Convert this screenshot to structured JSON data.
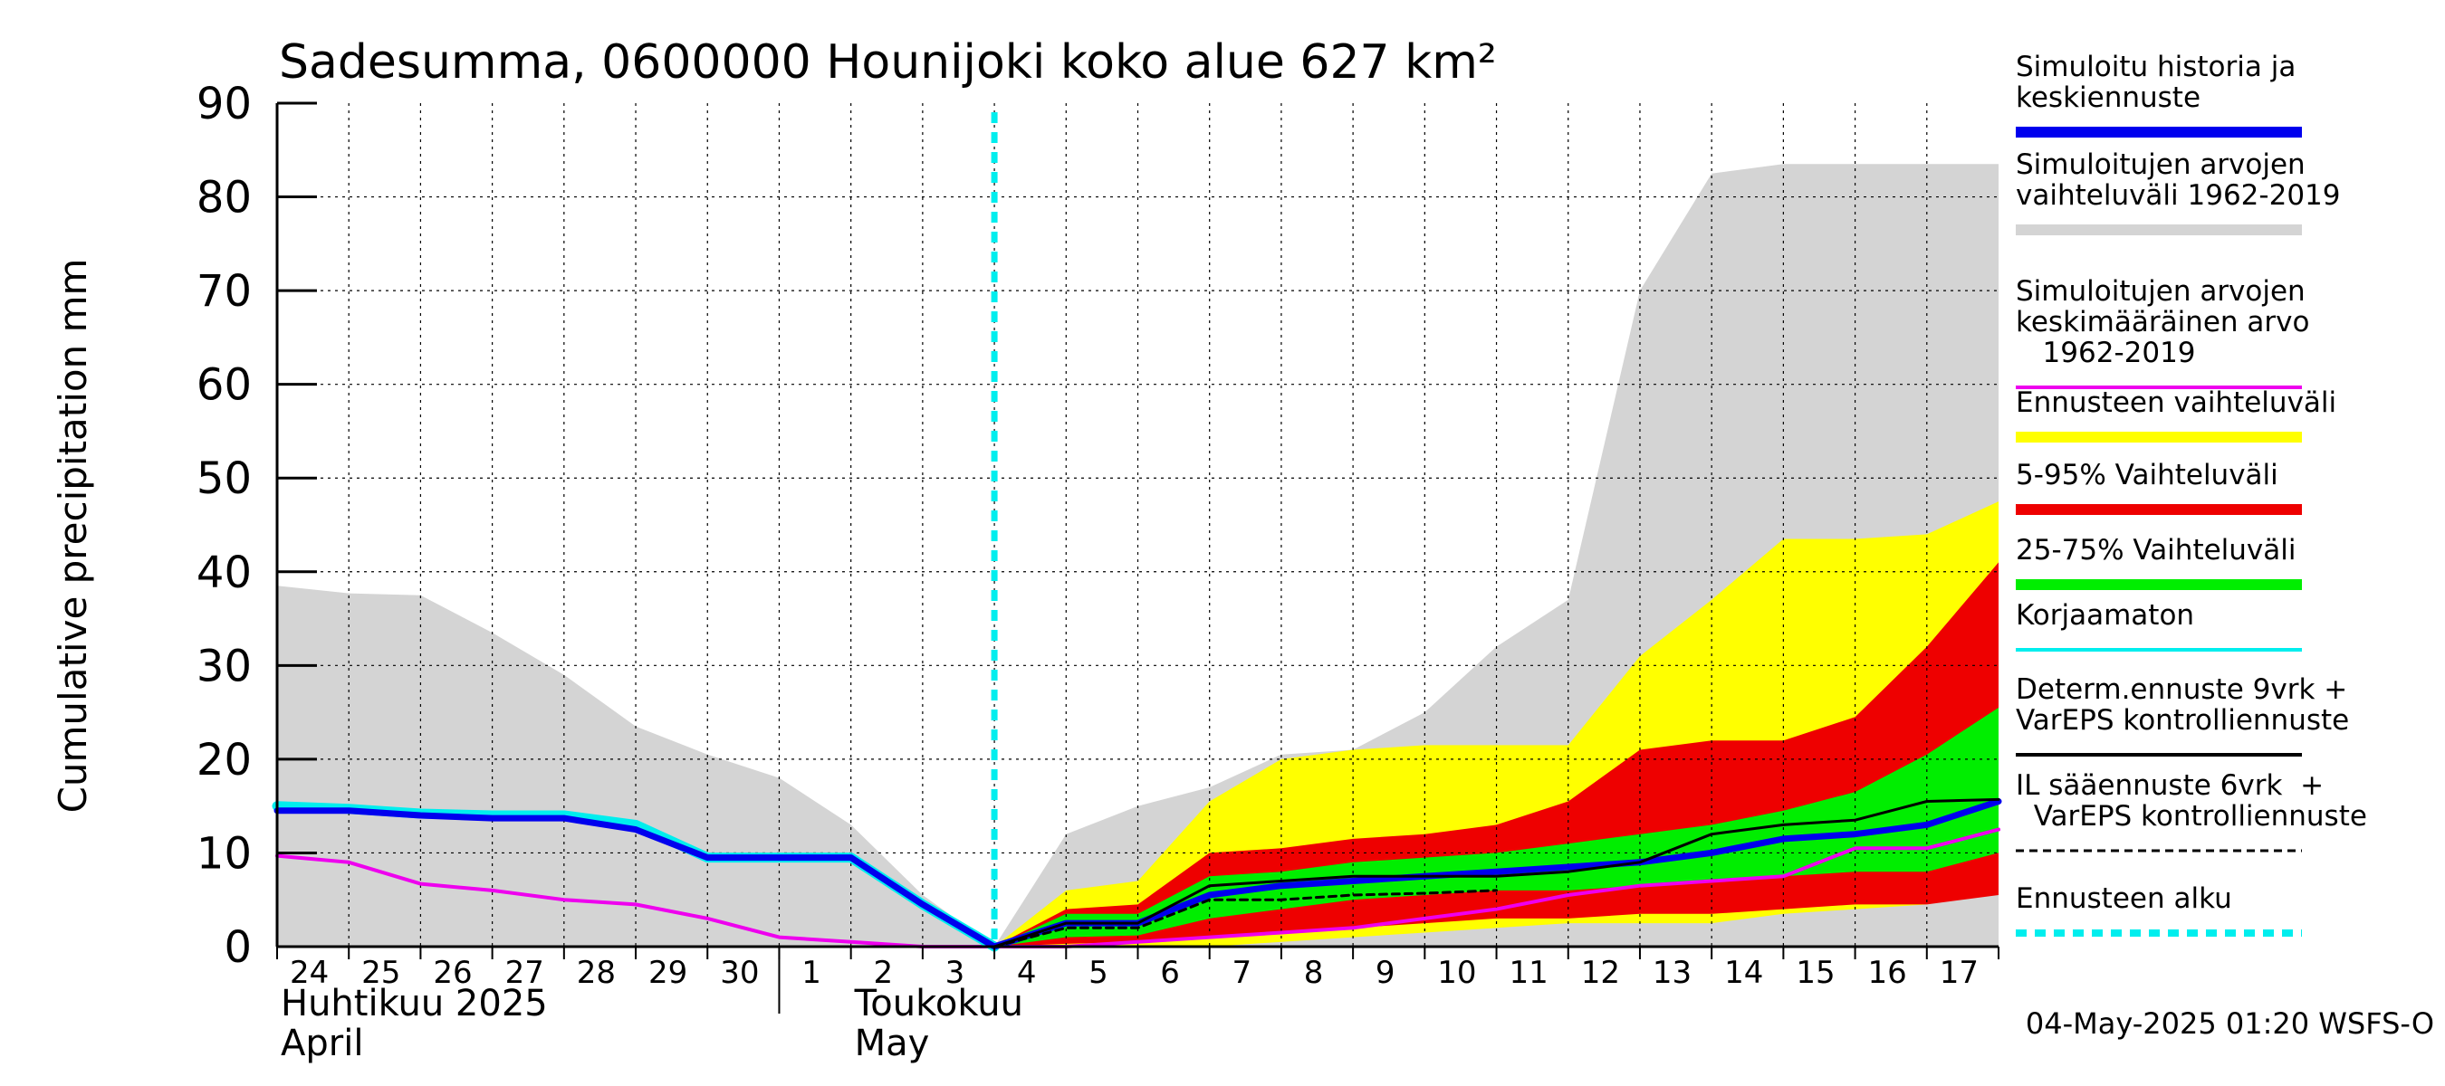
{
  "title": "Sadesumma, 0600000 Hounijoki koko alue 627 km²",
  "footer": "04-May-2025 01:20 WSFS-O",
  "colors": {
    "history_band": "#d4d4d4",
    "ensemble_range": "#ffff00",
    "p5_95": "#ee0000",
    "p25_75": "#00ee00",
    "median": "#0000ee",
    "mean": "#ee00ee",
    "uncorrected": "#00eeee",
    "deterministic": "#000000",
    "forecast_start": "#00eeee"
  },
  "legend": [
    {
      "text": "Simuloitu historia ja\nkeskiennuste",
      "swatch": "thick",
      "color": "#0000ee"
    },
    {
      "text": "Simuloitujen arvojen\nvaihteluväli 1962-2019",
      "swatch": "thick",
      "color": "#d4d4d4"
    },
    {
      "text": "Simuloitujen arvojen\nkeskimääräinen arvo\n   1962-2019",
      "swatch": "thin",
      "color": "#ee00ee"
    },
    {
      "text": "Ennusteen vaihteluväli",
      "swatch": "thick",
      "color": "#ffff00"
    },
    {
      "text": "5-95% Vaihteluväli",
      "swatch": "thick",
      "color": "#ee0000"
    },
    {
      "text": "25-75% Vaihteluväli",
      "swatch": "thick",
      "color": "#00ee00"
    },
    {
      "text": "Korjaamaton",
      "swatch": "thin",
      "color": "#00eeee"
    },
    {
      "text": "Determ.ennuste 9vrk +\nVarEPS kontrolliennuste",
      "swatch": "thin",
      "color": "#000000"
    },
    {
      "text": "IL sääennuste 6vrk  +\n  VarEPS kontrolliennuste",
      "swatch": "dashed",
      "color": "#000000"
    },
    {
      "text": "Ennusteen alku",
      "swatch": "dotted",
      "color": "#00eeee"
    }
  ],
  "chart_data": {
    "type": "area",
    "title": "Sadesumma, 0600000 Hounijoki koko alue 627 km²",
    "ylabel": "Cumulative precipitation   mm",
    "ylim": [
      0,
      90
    ],
    "yticks": [
      0,
      10,
      20,
      30,
      40,
      50,
      60,
      70,
      80,
      90
    ],
    "xlim": [
      0,
      24
    ],
    "x_tick_labels": [
      "24",
      "25",
      "26",
      "27",
      "28",
      "29",
      "30",
      "1",
      "2",
      "3",
      "4",
      "5",
      "6",
      "7",
      "8",
      "9",
      "10",
      "11",
      "12",
      "13",
      "14",
      "15",
      "16",
      "17"
    ],
    "month_labels": [
      {
        "line1": "Huhtikuu  2025",
        "line2": "April",
        "at_day": 0
      },
      {
        "line1": "Toukokuu",
        "line2": "May",
        "at_day": 8
      }
    ],
    "month_separator_day": 7,
    "forecast_start_day": 10,
    "grid": true,
    "legend_position": "right",
    "series": [
      {
        "name": "Simuloitujen arvojen vaihteluväli 1962-2019",
        "kind": "band",
        "x": [
          0,
          1,
          2,
          3,
          4,
          5,
          6,
          7,
          8,
          9,
          10,
          11,
          12,
          13,
          14,
          15,
          16,
          17,
          18,
          19,
          20,
          21,
          22,
          23,
          24
        ],
        "low": [
          0,
          0,
          0,
          0,
          0,
          0,
          0,
          0,
          0,
          0,
          0,
          0,
          0,
          0,
          0,
          0,
          0,
          0,
          0,
          0,
          0,
          0,
          0,
          0,
          0
        ],
        "high": [
          38.5,
          37.7,
          37.5,
          33.5,
          29,
          23.5,
          20.5,
          18,
          13,
          5.5,
          0,
          12,
          15,
          17,
          20.5,
          21,
          25,
          32,
          37,
          70,
          82.5,
          83.5,
          83.5,
          83.5,
          83.5
        ]
      },
      {
        "name": "Ennusteen vaihteluväli",
        "kind": "band",
        "x": [
          10,
          11,
          12,
          13,
          14,
          15,
          16,
          17,
          18,
          19,
          20,
          21,
          22,
          23,
          24
        ],
        "low": [
          0,
          0,
          0,
          0,
          0.5,
          1,
          1.5,
          2,
          2.5,
          2.5,
          2.5,
          3.5,
          4,
          4.5,
          6
        ],
        "high": [
          0,
          6,
          7,
          15.5,
          20,
          21,
          21.5,
          21.5,
          21.5,
          31,
          37,
          43.5,
          43.5,
          44,
          47.5
        ]
      },
      {
        "name": "5-95% Vaihteluväli",
        "kind": "band",
        "x": [
          10,
          11,
          12,
          13,
          14,
          15,
          16,
          17,
          18,
          19,
          20,
          21,
          22,
          23,
          24
        ],
        "low": [
          0,
          0.3,
          0.5,
          1,
          1.5,
          2,
          2.5,
          3,
          3,
          3.5,
          3.5,
          4,
          4.5,
          4.5,
          5.5
        ],
        "high": [
          0,
          4,
          4.5,
          10,
          10.5,
          11.5,
          12,
          13,
          15.5,
          21,
          22,
          22,
          24.5,
          32,
          41
        ]
      },
      {
        "name": "25-75% Vaihteluväli",
        "kind": "band",
        "x": [
          10,
          11,
          12,
          13,
          14,
          15,
          16,
          17,
          18,
          19,
          20,
          21,
          22,
          23,
          24
        ],
        "low": [
          0,
          1,
          1.2,
          3,
          4,
          5,
          5.5,
          6,
          6,
          6.5,
          7,
          7.5,
          8,
          8,
          10
        ],
        "high": [
          0,
          3.5,
          3.5,
          7.5,
          8,
          9,
          9.5,
          10,
          11,
          12,
          13,
          14.5,
          16.5,
          20.5,
          25.5
        ]
      },
      {
        "name": "Simuloitujen arvojen keskimääräinen arvo 1962-2019",
        "kind": "line",
        "x": [
          0,
          1,
          2,
          3,
          4,
          5,
          6,
          7,
          8,
          9,
          10,
          11,
          12,
          13,
          14,
          15,
          16,
          17,
          18,
          19,
          20,
          21,
          22,
          23,
          24
        ],
        "y": [
          9.7,
          9,
          6.7,
          6,
          5,
          4.5,
          3,
          1,
          0.5,
          0,
          0,
          0,
          0.5,
          1,
          1.5,
          2,
          3,
          4,
          5.5,
          6.5,
          7,
          7.5,
          10.5,
          10.5,
          12.5
        ]
      },
      {
        "name": "Korjaamaton",
        "kind": "line",
        "x": [
          0,
          1,
          2,
          3,
          4,
          5,
          6,
          7,
          8,
          9,
          10
        ],
        "y": [
          15,
          14.7,
          14.2,
          14,
          14,
          13,
          9.5,
          9.5,
          9.5,
          4.5,
          0
        ]
      },
      {
        "name": "Determ.ennuste 9vrk + VarEPS kontrolliennuste",
        "kind": "line",
        "x": [
          10,
          11,
          12,
          13,
          14,
          15,
          16,
          17,
          18,
          19,
          20,
          21,
          22,
          23,
          24
        ],
        "y": [
          0,
          2.5,
          2.5,
          6.5,
          7,
          7.5,
          7.5,
          7.5,
          8,
          9,
          12,
          13,
          13.5,
          15.5,
          15.7
        ]
      },
      {
        "name": "IL sääennuste 6vrk + VarEPS kontrolliennuste",
        "kind": "line",
        "x": [
          10,
          11,
          12,
          13,
          14,
          15,
          16,
          17
        ],
        "y": [
          0,
          2,
          2,
          5,
          5,
          5.5,
          5.7,
          6
        ]
      },
      {
        "name": "Simuloitu historia ja keskiennuste",
        "kind": "line",
        "x": [
          0,
          1,
          2,
          3,
          4,
          5,
          6,
          7,
          8,
          9,
          10,
          11,
          12,
          13,
          14,
          15,
          16,
          17,
          18,
          19,
          20,
          21,
          22,
          23,
          24
        ],
        "y": [
          14.5,
          14.5,
          14,
          13.7,
          13.7,
          12.5,
          9.5,
          9.5,
          9.5,
          4.5,
          0,
          2.5,
          2.5,
          5.5,
          6.5,
          7,
          7.5,
          8,
          8.5,
          9,
          10,
          11.5,
          12,
          13,
          15.5
        ]
      }
    ]
  }
}
